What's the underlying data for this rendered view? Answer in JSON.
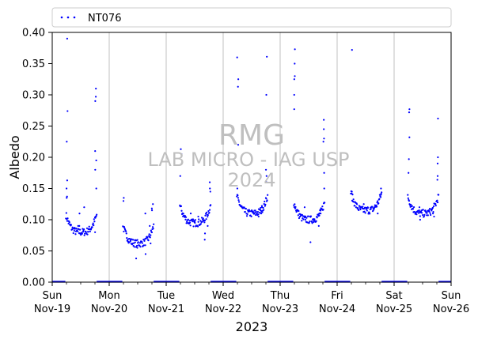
{
  "chart_data": {
    "type": "scatter",
    "xlabel": "2023",
    "ylabel": "Albedo",
    "ylim": [
      0,
      0.4
    ],
    "yticks": [
      "0.00",
      "0.05",
      "0.10",
      "0.15",
      "0.20",
      "0.25",
      "0.30",
      "0.35",
      "0.40"
    ],
    "xlim": [
      "2023-11-19",
      "2023-11-26"
    ],
    "xticks": [
      {
        "day": "Sun",
        "date": "Nov-19"
      },
      {
        "day": "Mon",
        "date": "Nov-20"
      },
      {
        "day": "Tue",
        "date": "Nov-21"
      },
      {
        "day": "Wed",
        "date": "Nov-22"
      },
      {
        "day": "Thu",
        "date": "Nov-23"
      },
      {
        "day": "Fri",
        "date": "Nov-24"
      },
      {
        "day": "Sat",
        "date": "Nov-25"
      },
      {
        "day": "Sun",
        "date": "Nov-26"
      }
    ],
    "grid": "vertical",
    "legend_position": "top",
    "series": [
      {
        "name": "NT076",
        "color": "#0000ff",
        "days": [
          {
            "date": "2023-11-19",
            "peaks": [
              0.39,
              0.274,
              0.225,
              0.163,
              0.15,
              0.137,
              0.135,
              0.31,
              0.297,
              0.29,
              0.21,
              0.195,
              0.18,
              0.15
            ],
            "troughs": [
              0.12,
              0.11,
              0.09,
              0.08,
              0.078,
              0.085,
              0.09
            ]
          },
          {
            "date": "2023-11-20",
            "peaks": [
              0.135,
              0.13,
              0.125
            ],
            "troughs": [
              0.118,
              0.115,
              0.11,
              0.09,
              0.062,
              0.055,
              0.045,
              0.038
            ]
          },
          {
            "date": "2023-11-21",
            "peaks": [
              0.213,
              0.205,
              0.17,
              0.16,
              0.15,
              0.145
            ],
            "troughs": [
              0.11,
              0.105,
              0.1,
              0.095,
              0.09,
              0.078,
              0.068
            ]
          },
          {
            "date": "2023-11-22",
            "peaks": [
              0.36,
              0.325,
              0.313,
              0.22,
              0.15,
              0.361,
              0.3,
              0.18,
              0.17,
              0.16
            ],
            "troughs": [
              0.12,
              0.115,
              0.11,
              0.105
            ]
          },
          {
            "date": "2023-11-23",
            "peaks": [
              0.373,
              0.35,
              0.33,
              0.325,
              0.3,
              0.277,
              0.26,
              0.245,
              0.23,
              0.225,
              0.175,
              0.15
            ],
            "troughs": [
              0.12,
              0.115,
              0.11,
              0.1,
              0.09,
              0.064
            ]
          },
          {
            "date": "2023-11-24",
            "peaks": [
              0.372,
              0.145,
              0.14,
              0.15
            ],
            "troughs": [
              0.125,
              0.12,
              0.115,
              0.11
            ]
          },
          {
            "date": "2023-11-25",
            "peaks": [
              0.277,
              0.175,
              0.272,
              0.232,
              0.197,
              0.164,
              0.262,
              0.2,
              0.19,
              0.17
            ],
            "troughs": [
              0.12,
              0.115,
              0.11,
              0.105,
              0.1
            ]
          }
        ]
      }
    ]
  },
  "watermark": {
    "line1": "RMG",
    "line2": "LAB MICRO - IAG USP",
    "line3": "2024"
  }
}
